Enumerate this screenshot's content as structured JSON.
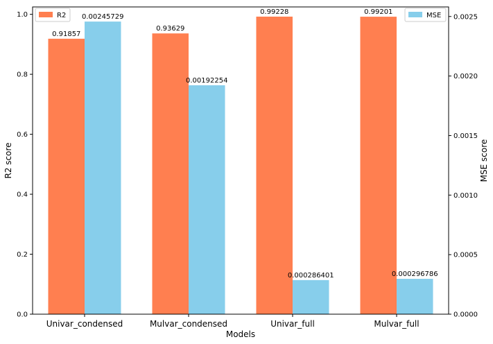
{
  "chart_data": {
    "type": "bar",
    "title": "",
    "xlabel": "Models",
    "categories": [
      "Univar_condensed",
      "Mulvar_condensed",
      "Univar_full",
      "Mulvar_full"
    ],
    "series": [
      {
        "name": "R2",
        "axis": "left",
        "color": "#ff7f50",
        "values": [
          0.91857,
          0.93629,
          0.99228,
          0.99201
        ],
        "labels": [
          "0.91857",
          "0.93629",
          "0.99228",
          "0.99201"
        ]
      },
      {
        "name": "MSE",
        "axis": "right",
        "color": "#87ceeb",
        "values": [
          0.00245729,
          0.00192254,
          0.000286401,
          0.000296786
        ],
        "labels": [
          "0.00245729",
          "0.00192254",
          "0.000286401",
          "0.000296786"
        ]
      }
    ],
    "y_left": {
      "label": "R2 score",
      "ylim": [
        0,
        1.0246
      ],
      "ticks": [
        0,
        0.2,
        0.4,
        0.6,
        0.8,
        1.0
      ],
      "tick_labels": [
        "0.0",
        "0.2",
        "0.4",
        "0.6",
        "0.8",
        "1.0"
      ]
    },
    "y_right": {
      "label": "MSE score",
      "ylim": [
        0,
        0.0025802
      ],
      "ticks": [
        0,
        0.0005,
        0.001,
        0.0015,
        0.002,
        0.0025
      ],
      "tick_labels": [
        "0.0000",
        "0.0005",
        "0.0010",
        "0.0015",
        "0.0020",
        "0.0025"
      ]
    },
    "legends": [
      {
        "placement": "upper-left",
        "entries": [
          "R2"
        ]
      },
      {
        "placement": "upper-right",
        "entries": [
          "MSE"
        ]
      }
    ],
    "grid": false
  }
}
